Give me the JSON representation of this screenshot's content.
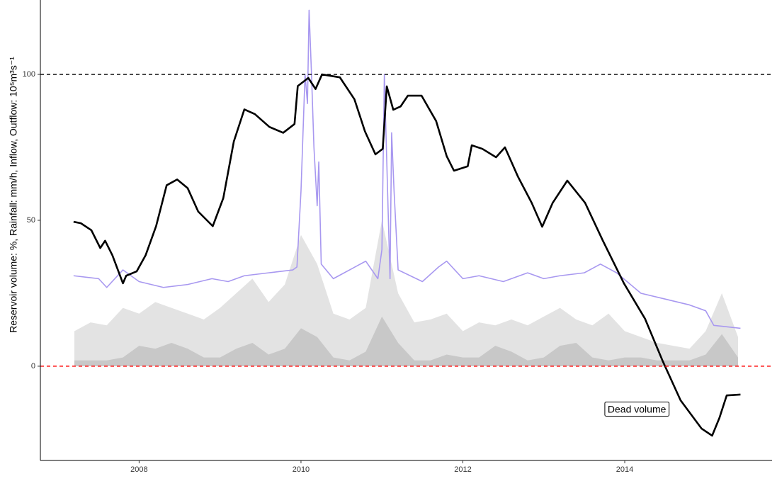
{
  "chart_data": {
    "type": "line",
    "y_label": "Reservoir volume: %, Rainfall: mm/h, Inflow, Outflow: 10⁵m³s⁻¹",
    "xlim": [
      2006.78,
      2015.82
    ],
    "ylim": [
      -32.3,
      125.5
    ],
    "xticks": [
      2008,
      2010,
      2012,
      2014
    ],
    "yticks": [
      0,
      50,
      100
    ],
    "hlines": [
      {
        "y": 100,
        "color": "#000000"
      },
      {
        "y": 0,
        "color": "#ff0000"
      }
    ],
    "annotation": {
      "text": "Dead volume",
      "x": 2014.15,
      "y": -15
    },
    "series": [
      {
        "type": "area",
        "color": "#e3e3e3",
        "x": [
          2007.2,
          2007.4,
          2007.6,
          2007.8,
          2008.0,
          2008.2,
          2008.4,
          2008.6,
          2008.8,
          2009.0,
          2009.2,
          2009.4,
          2009.6,
          2009.8,
          2010.0,
          2010.2,
          2010.4,
          2010.6,
          2010.8,
          2011.0,
          2011.2,
          2011.4,
          2011.6,
          2011.8,
          2012.0,
          2012.2,
          2012.4,
          2012.6,
          2012.8,
          2013.0,
          2013.2,
          2013.4,
          2013.6,
          2013.8,
          2014.0,
          2014.2,
          2014.4,
          2014.6,
          2014.8,
          2015.0,
          2015.2,
          2015.4
        ],
        "values": [
          12,
          15,
          14,
          20,
          18,
          22,
          20,
          18,
          16,
          20,
          25,
          30,
          22,
          28,
          45,
          35,
          18,
          16,
          20,
          50,
          25,
          15,
          16,
          18,
          12,
          15,
          14,
          16,
          14,
          17,
          20,
          16,
          14,
          18,
          12,
          10,
          8,
          7,
          6,
          12,
          25,
          10
        ]
      },
      {
        "type": "area",
        "color": "#c8c8c8",
        "x": [
          2007.2,
          2007.4,
          2007.6,
          2007.8,
          2008.0,
          2008.2,
          2008.4,
          2008.6,
          2008.8,
          2009.0,
          2009.2,
          2009.4,
          2009.6,
          2009.8,
          2010.0,
          2010.2,
          2010.4,
          2010.6,
          2010.8,
          2011.0,
          2011.2,
          2011.4,
          2011.6,
          2011.8,
          2012.0,
          2012.2,
          2012.4,
          2012.6,
          2012.8,
          2013.0,
          2013.2,
          2013.4,
          2013.6,
          2013.8,
          2014.0,
          2014.2,
          2014.4,
          2014.6,
          2014.8,
          2015.0,
          2015.2,
          2015.4
        ],
        "values": [
          2,
          2,
          2,
          3,
          7,
          6,
          8,
          6,
          3,
          3,
          6,
          8,
          4,
          6,
          13,
          10,
          3,
          2,
          5,
          17,
          8,
          2,
          2,
          4,
          3,
          3,
          7,
          5,
          2,
          3,
          7,
          8,
          3,
          2,
          3,
          3,
          2,
          2,
          2,
          4,
          11,
          3
        ]
      },
      {
        "type": "line",
        "color": "#a898f0",
        "x": [
          2007.19,
          2007.5,
          2007.6,
          2007.8,
          2008.0,
          2008.3,
          2008.6,
          2008.9,
          2009.1,
          2009.3,
          2009.6,
          2009.9,
          2009.95,
          2010.0,
          2010.05,
          2010.08,
          2010.1,
          2010.13,
          2010.16,
          2010.2,
          2010.22,
          2010.25,
          2010.4,
          2010.6,
          2010.8,
          2010.95,
          2011.0,
          2011.03,
          2011.06,
          2011.1,
          2011.12,
          2011.15,
          2011.2,
          2011.5,
          2011.7,
          2011.8,
          2012.0,
          2012.2,
          2012.5,
          2012.8,
          2013.0,
          2013.2,
          2013.5,
          2013.7,
          2013.9,
          2014.2,
          2014.5,
          2014.8,
          2015.0,
          2015.1,
          2015.43
        ],
        "values": [
          31,
          30,
          27,
          33,
          29,
          27,
          28,
          30,
          29,
          31,
          32,
          33,
          34,
          60,
          100,
          90,
          122,
          100,
          75,
          55,
          70,
          35,
          30,
          33,
          36,
          30,
          40,
          100,
          70,
          30,
          80,
          60,
          33,
          29,
          34,
          36,
          30,
          31,
          29,
          32,
          30,
          31,
          32,
          35,
          32,
          25,
          23,
          21,
          19,
          14,
          13
        ]
      },
      {
        "type": "line",
        "color": "#000000",
        "x": [
          2007.19,
          2007.28,
          2007.41,
          2007.52,
          2007.58,
          2007.67,
          2007.8,
          2007.84,
          2007.97,
          2008.08,
          2008.21,
          2008.34,
          2008.47,
          2008.6,
          2008.73,
          2008.91,
          2009.04,
          2009.17,
          2009.3,
          2009.43,
          2009.61,
          2009.78,
          2009.92,
          2009.96,
          2010.09,
          2010.18,
          2010.26,
          2010.48,
          2010.66,
          2010.79,
          2010.92,
          2011.01,
          2011.06,
          2011.14,
          2011.23,
          2011.32,
          2011.49,
          2011.67,
          2011.8,
          2011.89,
          2012.06,
          2012.11,
          2012.24,
          2012.41,
          2012.52,
          2012.68,
          2012.85,
          2012.98,
          2013.11,
          2013.29,
          2013.51,
          2013.73,
          2013.99,
          2014.25,
          2014.47,
          2014.69,
          2014.95,
          2015.08,
          2015.17,
          2015.26,
          2015.43
        ],
        "values": [
          49.5,
          49,
          46.6,
          40.5,
          43,
          38,
          28.4,
          31,
          32.5,
          38,
          48,
          62,
          64,
          61,
          53,
          48,
          57.6,
          77,
          88,
          86.4,
          82,
          80,
          83,
          96,
          98.8,
          95,
          100,
          99,
          91.5,
          80.5,
          72.6,
          74.5,
          95.9,
          87.9,
          89,
          92.7,
          92.7,
          84,
          72,
          67,
          68.5,
          75.7,
          74.5,
          71.6,
          75,
          65,
          56,
          47.8,
          56,
          63.6,
          56,
          43,
          28.4,
          16.3,
          1.7,
          -11.7,
          -21.4,
          -23.8,
          -17.7,
          -10,
          -9.7
        ]
      }
    ]
  }
}
